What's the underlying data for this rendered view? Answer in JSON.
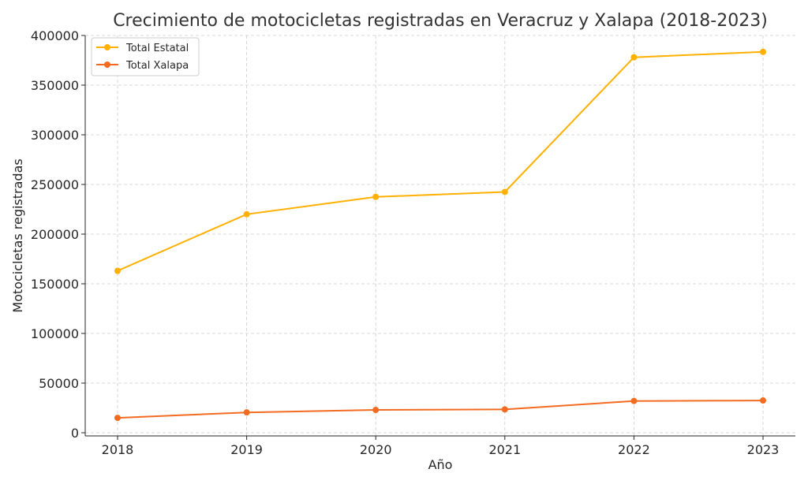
{
  "chart_data": {
    "type": "line",
    "title": "Crecimiento de motocicletas registradas en Veracruz y Xalapa (2018-2023)",
    "xlabel": "Año",
    "ylabel": "Motocicletas registradas",
    "categories": [
      "2018",
      "2019",
      "2020",
      "2021",
      "2022",
      "2023"
    ],
    "ylim": [
      0,
      400000
    ],
    "yticks": [
      0,
      50000,
      100000,
      150000,
      200000,
      250000,
      300000,
      350000,
      400000
    ],
    "ytick_labels": [
      "0",
      "50000",
      "100000",
      "150000",
      "200000",
      "250000",
      "300000",
      "350000",
      "400000"
    ],
    "grid": true,
    "legend_position": "top-left",
    "series": [
      {
        "name": "Total Estatal",
        "color": "#FFB000",
        "values": [
          163000,
          220000,
          237500,
          242500,
          378000,
          383500
        ]
      },
      {
        "name": "Total Xalapa",
        "color": "#F26B21",
        "values": [
          15000,
          20500,
          23000,
          23500,
          32000,
          32500
        ]
      }
    ]
  }
}
